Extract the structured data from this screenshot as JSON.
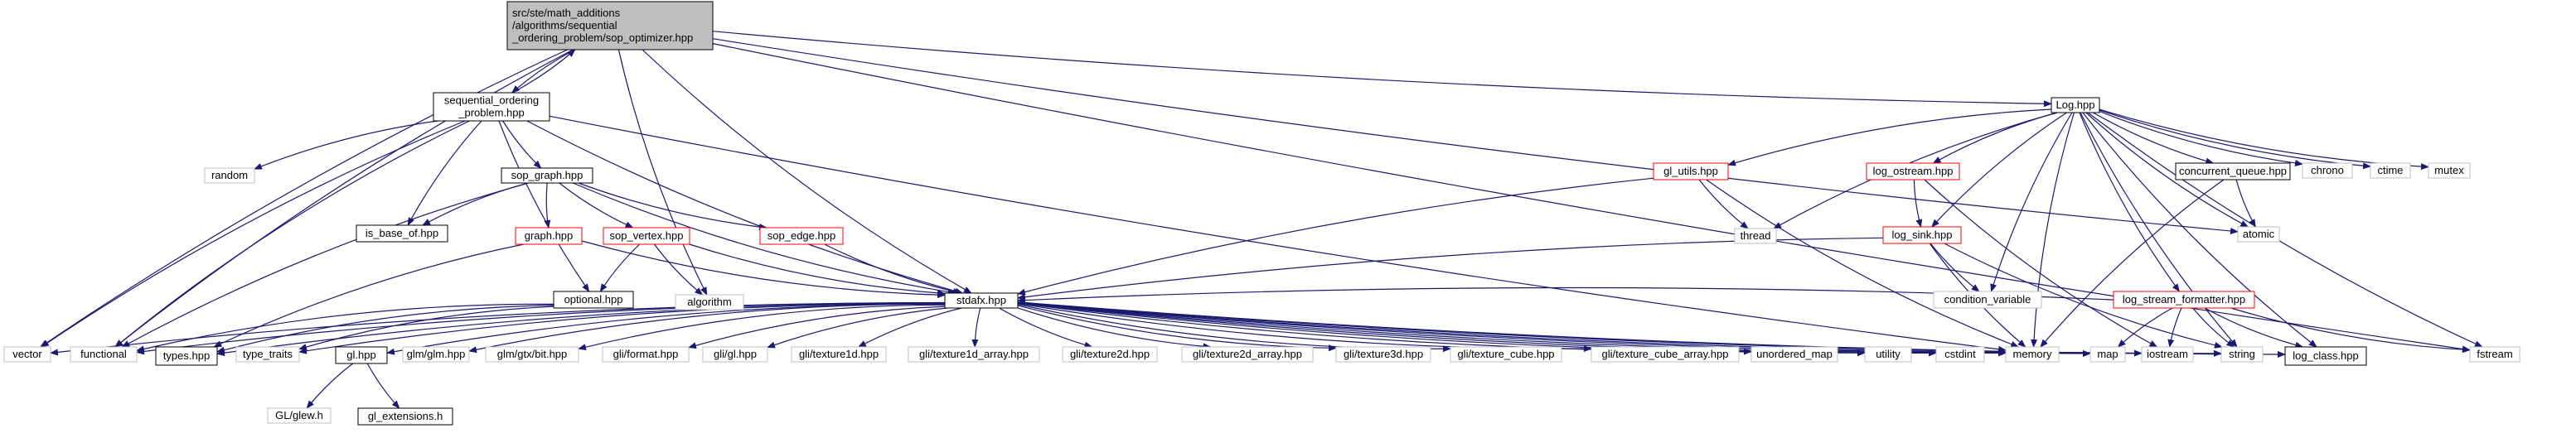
{
  "colors": {
    "edge": "#191970",
    "normal_border": "#000000",
    "missing_border": "#bfbfbf",
    "red_border": "#ff0000",
    "root_fill": "#bfbfbf",
    "node_fill": "#ffffff"
  },
  "nodes": {
    "root": {
      "lines": [
        "src/ste/math_additions",
        "/algorithms/sequential",
        "_ordering_problem/sop_optimizer.hpp"
      ],
      "style": "root"
    },
    "seqprob": {
      "lines": [
        "sequential_ordering",
        "_problem.hpp"
      ],
      "style": "normal"
    },
    "loghpp": {
      "lines": [
        "Log.hpp"
      ],
      "style": "normal"
    },
    "random": {
      "lines": [
        "random"
      ],
      "style": "missing"
    },
    "sopgraph": {
      "lines": [
        "sop_graph.hpp"
      ],
      "style": "normal"
    },
    "isbase": {
      "lines": [
        "is_base_of.hpp"
      ],
      "style": "normal"
    },
    "graphhpp": {
      "lines": [
        "graph.hpp"
      ],
      "style": "red"
    },
    "sopvertex": {
      "lines": [
        "sop_vertex.hpp"
      ],
      "style": "red"
    },
    "sopedge": {
      "lines": [
        "sop_edge.hpp"
      ],
      "style": "red"
    },
    "optional": {
      "lines": [
        "optional.hpp"
      ],
      "style": "normal"
    },
    "algorithm": {
      "lines": [
        "algorithm"
      ],
      "style": "missing"
    },
    "stdafx": {
      "lines": [
        "stdafx.hpp"
      ],
      "style": "normal"
    },
    "glutils": {
      "lines": [
        "gl_utils.hpp"
      ],
      "style": "red"
    },
    "thread": {
      "lines": [
        "thread"
      ],
      "style": "missing"
    },
    "logostream": {
      "lines": [
        "log_ostream.hpp"
      ],
      "style": "red"
    },
    "logsink": {
      "lines": [
        "log_sink.hpp"
      ],
      "style": "red"
    },
    "condvar": {
      "lines": [
        "condition_variable"
      ],
      "style": "missing"
    },
    "concqueue": {
      "lines": [
        "concurrent_queue.hpp"
      ],
      "style": "normal"
    },
    "chrono": {
      "lines": [
        "chrono"
      ],
      "style": "missing"
    },
    "ctime": {
      "lines": [
        "ctime"
      ],
      "style": "missing"
    },
    "mutex": {
      "lines": [
        "mutex"
      ],
      "style": "missing"
    },
    "atomic": {
      "lines": [
        "atomic"
      ],
      "style": "missing"
    },
    "logstreamfmt": {
      "lines": [
        "log_stream_formatter.hpp"
      ],
      "style": "red"
    },
    "vector": {
      "lines": [
        "vector"
      ],
      "style": "missing"
    },
    "functional": {
      "lines": [
        "functional"
      ],
      "style": "missing"
    },
    "types": {
      "lines": [
        "types.hpp"
      ],
      "style": "normal"
    },
    "typetraits": {
      "lines": [
        "type_traits"
      ],
      "style": "missing"
    },
    "glhpp": {
      "lines": [
        "gl.hpp"
      ],
      "style": "normal"
    },
    "glmglm": {
      "lines": [
        "glm/glm.hpp"
      ],
      "style": "missing"
    },
    "glmgtx": {
      "lines": [
        "glm/gtx/bit.hpp"
      ],
      "style": "missing"
    },
    "gliformat": {
      "lines": [
        "gli/format.hpp"
      ],
      "style": "missing"
    },
    "gligl": {
      "lines": [
        "gli/gl.hpp"
      ],
      "style": "missing"
    },
    "glitex1d": {
      "lines": [
        "gli/texture1d.hpp"
      ],
      "style": "missing"
    },
    "glitex1da": {
      "lines": [
        "gli/texture1d_array.hpp"
      ],
      "style": "missing"
    },
    "glitex2d": {
      "lines": [
        "gli/texture2d.hpp"
      ],
      "style": "missing"
    },
    "glitex2da": {
      "lines": [
        "gli/texture2d_array.hpp"
      ],
      "style": "missing"
    },
    "glitex3d": {
      "lines": [
        "gli/texture3d.hpp"
      ],
      "style": "missing"
    },
    "glicube": {
      "lines": [
        "gli/texture_cube.hpp"
      ],
      "style": "missing"
    },
    "glicubea": {
      "lines": [
        "gli/texture_cube_array.hpp"
      ],
      "style": "missing"
    },
    "umap": {
      "lines": [
        "unordered_map"
      ],
      "style": "missing"
    },
    "utility": {
      "lines": [
        "utility"
      ],
      "style": "missing"
    },
    "cstdint": {
      "lines": [
        "cstdint"
      ],
      "style": "missing"
    },
    "memory": {
      "lines": [
        "memory"
      ],
      "style": "missing"
    },
    "map": {
      "lines": [
        "map"
      ],
      "style": "missing"
    },
    "iostream": {
      "lines": [
        "iostream"
      ],
      "style": "missing"
    },
    "string": {
      "lines": [
        "string"
      ],
      "style": "missing"
    },
    "logclass": {
      "lines": [
        "log_class.hpp"
      ],
      "style": "normal"
    },
    "fstream": {
      "lines": [
        "fstream"
      ],
      "style": "missing"
    },
    "glew": {
      "lines": [
        "GL/glew.h"
      ],
      "style": "missing"
    },
    "glext": {
      "lines": [
        "gl_extensions.h"
      ],
      "style": "normal"
    }
  },
  "edges": [
    [
      "root",
      "seqprob"
    ],
    [
      "root",
      "loghpp"
    ],
    [
      "root",
      "vector"
    ],
    [
      "root",
      "functional"
    ],
    [
      "root",
      "stdafx"
    ],
    [
      "root",
      "algorithm"
    ],
    [
      "root",
      "atomic"
    ],
    [
      "root",
      "fstream"
    ],
    [
      "seqprob",
      "root"
    ],
    [
      "seqprob",
      "random"
    ],
    [
      "seqprob",
      "sopgraph"
    ],
    [
      "seqprob",
      "isbase"
    ],
    [
      "seqprob",
      "optional"
    ],
    [
      "seqprob",
      "stdafx"
    ],
    [
      "seqprob",
      "vector"
    ],
    [
      "seqprob",
      "functional"
    ],
    [
      "seqprob",
      "memory"
    ],
    [
      "sopgraph",
      "isbase"
    ],
    [
      "sopgraph",
      "graphhpp"
    ],
    [
      "sopgraph",
      "sopvertex"
    ],
    [
      "sopgraph",
      "sopedge"
    ],
    [
      "sopgraph",
      "stdafx"
    ],
    [
      "sopgraph",
      "functional"
    ],
    [
      "graphhpp",
      "stdafx"
    ],
    [
      "graphhpp",
      "types"
    ],
    [
      "sopvertex",
      "optional"
    ],
    [
      "sopvertex",
      "algorithm"
    ],
    [
      "sopvertex",
      "stdafx"
    ],
    [
      "sopedge",
      "stdafx"
    ],
    [
      "optional",
      "functional"
    ],
    [
      "optional",
      "types"
    ],
    [
      "optional",
      "typetraits"
    ],
    [
      "loghpp",
      "glutils"
    ],
    [
      "loghpp",
      "thread"
    ],
    [
      "loghpp",
      "logostream"
    ],
    [
      "loghpp",
      "logsink"
    ],
    [
      "loghpp",
      "condvar"
    ],
    [
      "loghpp",
      "concqueue"
    ],
    [
      "loghpp",
      "chrono"
    ],
    [
      "loghpp",
      "ctime"
    ],
    [
      "loghpp",
      "mutex"
    ],
    [
      "loghpp",
      "logstreamfmt"
    ],
    [
      "loghpp",
      "logclass"
    ],
    [
      "loghpp",
      "memory"
    ],
    [
      "loghpp",
      "string"
    ],
    [
      "loghpp",
      "fstream"
    ],
    [
      "loghpp",
      "atomic"
    ],
    [
      "glutils",
      "stdafx"
    ],
    [
      "glutils",
      "thread"
    ],
    [
      "glutils",
      "memory"
    ],
    [
      "logostream",
      "logsink"
    ],
    [
      "logostream",
      "iostream"
    ],
    [
      "logsink",
      "stdafx"
    ],
    [
      "logsink",
      "condvar"
    ],
    [
      "logsink",
      "memory"
    ],
    [
      "logsink",
      "string"
    ],
    [
      "concqueue",
      "atomic"
    ],
    [
      "concqueue",
      "memory"
    ],
    [
      "logstreamfmt",
      "stdafx"
    ],
    [
      "logstreamfmt",
      "map"
    ],
    [
      "logstreamfmt",
      "iostream"
    ],
    [
      "logstreamfmt",
      "string"
    ],
    [
      "logstreamfmt",
      "logclass"
    ],
    [
      "logstreamfmt",
      "fstream"
    ],
    [
      "stdafx",
      "vector"
    ],
    [
      "stdafx",
      "functional"
    ],
    [
      "stdafx",
      "types"
    ],
    [
      "stdafx",
      "typetraits"
    ],
    [
      "stdafx",
      "glhpp"
    ],
    [
      "stdafx",
      "glmglm"
    ],
    [
      "stdafx",
      "glmgtx"
    ],
    [
      "stdafx",
      "gliformat"
    ],
    [
      "stdafx",
      "gligl"
    ],
    [
      "stdafx",
      "glitex1d"
    ],
    [
      "stdafx",
      "glitex1da"
    ],
    [
      "stdafx",
      "glitex2d"
    ],
    [
      "stdafx",
      "glitex2da"
    ],
    [
      "stdafx",
      "glitex3d"
    ],
    [
      "stdafx",
      "glicube"
    ],
    [
      "stdafx",
      "glicubea"
    ],
    [
      "stdafx",
      "umap"
    ],
    [
      "stdafx",
      "utility"
    ],
    [
      "stdafx",
      "cstdint"
    ],
    [
      "stdafx",
      "memory"
    ],
    [
      "stdafx",
      "map"
    ],
    [
      "stdafx",
      "iostream"
    ],
    [
      "stdafx",
      "string"
    ],
    [
      "stdafx",
      "logclass"
    ],
    [
      "glhpp",
      "glew"
    ],
    [
      "glhpp",
      "glext"
    ]
  ]
}
